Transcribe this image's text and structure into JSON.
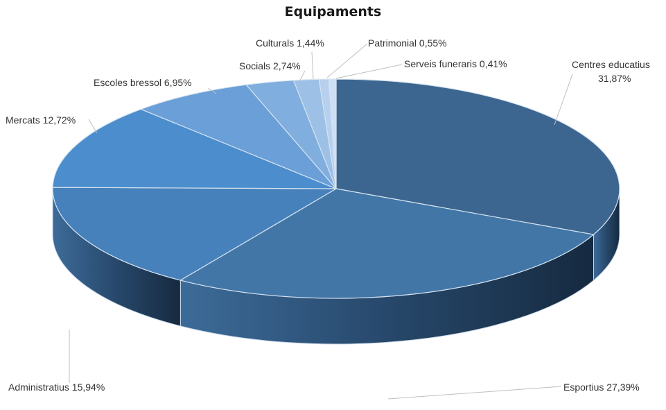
{
  "chart_data": {
    "type": "pie",
    "title": "Equipaments",
    "style": "3d",
    "slices": [
      {
        "name": "Centres educatius",
        "value": 31.87,
        "label_text": "Centres educatius",
        "label_text2": "31,87%",
        "color": "#3c6690"
      },
      {
        "name": "Esportius",
        "value": 27.39,
        "label_text": "Esportius 27,39%",
        "color": "#4276a7"
      },
      {
        "name": "Administratius",
        "value": 15.94,
        "label_text": "Administratius 15,94%",
        "color": "#4681bb"
      },
      {
        "name": "Mercats",
        "value": 12.72,
        "label_text": "Mercats 12,72%",
        "color": "#4c8ecd"
      },
      {
        "name": "Escoles bressol",
        "value": 6.95,
        "label_text": "Escoles bressol 6,95%",
        "color": "#6a9fd8"
      },
      {
        "name": "Socials",
        "value": 2.74,
        "label_text": "Socials 2,74%",
        "color": "#80aede"
      },
      {
        "name": "Culturals",
        "value": 1.44,
        "label_text": "Culturals 1,44%",
        "color": "#9dc0e6"
      },
      {
        "name": "Patrimonial",
        "value": 0.55,
        "label_text": "Patrimonial 0,55%",
        "color": "#b6d0ee"
      },
      {
        "name": "Serveis funeraris",
        "value": 0.41,
        "label_text": "Serveis funeraris 0,41%",
        "color": "#cddff4"
      }
    ]
  }
}
